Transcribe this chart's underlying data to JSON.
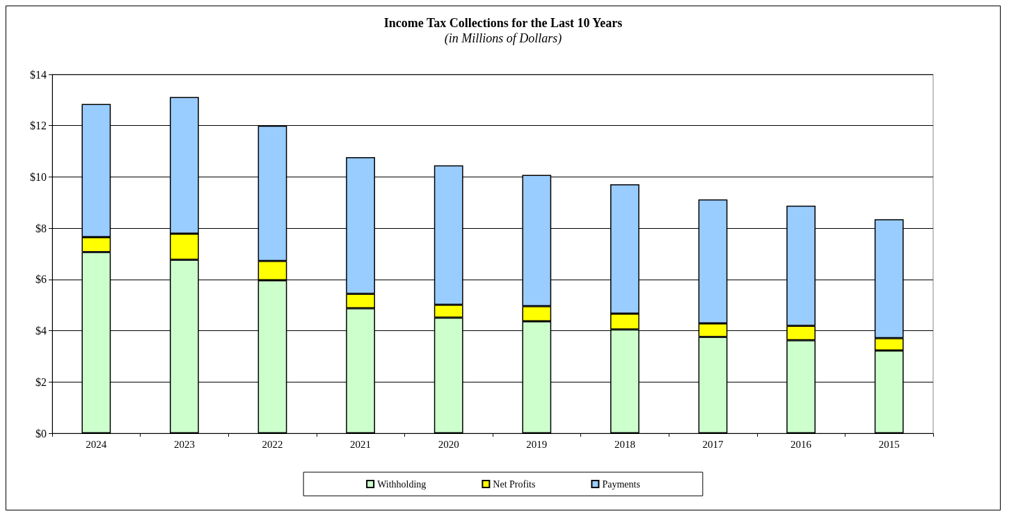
{
  "chart_data": {
    "type": "bar",
    "title": "Income Tax Collections for the Last 10 Years",
    "subtitle": "(in Millions of Dollars)",
    "categories": [
      "2024",
      "2023",
      "2022",
      "2021",
      "2020",
      "2019",
      "2018",
      "2017",
      "2016",
      "2015"
    ],
    "series": [
      {
        "name": "Withholding",
        "color": "#ccffcc",
        "values": [
          7.07,
          6.77,
          5.97,
          4.88,
          4.51,
          4.37,
          4.05,
          3.76,
          3.63,
          3.23
        ]
      },
      {
        "name": "Net Profits",
        "color": "#ffff00",
        "values": [
          0.58,
          1.02,
          0.75,
          0.56,
          0.5,
          0.59,
          0.62,
          0.53,
          0.56,
          0.48
        ]
      },
      {
        "name": "Payments",
        "color": "#99ccff",
        "values": [
          5.2,
          5.33,
          5.28,
          5.33,
          5.44,
          5.12,
          5.04,
          4.83,
          4.69,
          4.64
        ]
      }
    ],
    "stacked": true,
    "ylim": [
      0,
      14
    ],
    "yticks": [
      {
        "value": 0,
        "label": "$0"
      },
      {
        "value": 2,
        "label": "$2"
      },
      {
        "value": 4,
        "label": "$4"
      },
      {
        "value": 6,
        "label": "$6"
      },
      {
        "value": 8,
        "label": "$8"
      },
      {
        "value": 10,
        "label": "$10"
      },
      {
        "value": 12,
        "label": "$12"
      },
      {
        "value": 14,
        "label": "$14"
      }
    ],
    "grid": "y",
    "legend": "bottom"
  }
}
